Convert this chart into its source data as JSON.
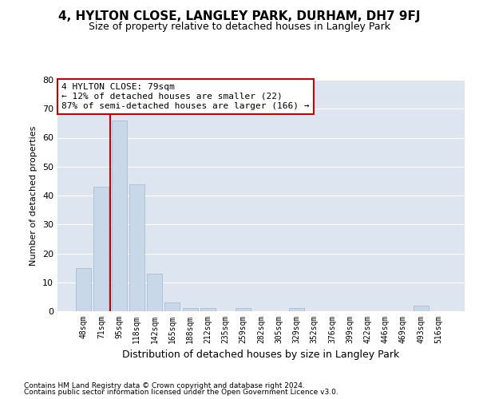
{
  "title": "4, HYLTON CLOSE, LANGLEY PARK, DURHAM, DH7 9FJ",
  "subtitle": "Size of property relative to detached houses in Langley Park",
  "xlabel": "Distribution of detached houses by size in Langley Park",
  "ylabel": "Number of detached properties",
  "footnote1": "Contains HM Land Registry data © Crown copyright and database right 2024.",
  "footnote2": "Contains public sector information licensed under the Open Government Licence v3.0.",
  "property_label": "4 HYLTON CLOSE: 79sqm",
  "annotation_line1": "← 12% of detached houses are smaller (22)",
  "annotation_line2": "87% of semi-detached houses are larger (166) →",
  "bar_color": "#c8d8e8",
  "bar_edge_color": "#a0b8d0",
  "vline_color": "#cc0000",
  "annotation_box_color": "#cc0000",
  "bg_color": "#dde5f0",
  "categories": [
    "48sqm",
    "71sqm",
    "95sqm",
    "118sqm",
    "142sqm",
    "165sqm",
    "188sqm",
    "212sqm",
    "235sqm",
    "259sqm",
    "282sqm",
    "305sqm",
    "329sqm",
    "352sqm",
    "376sqm",
    "399sqm",
    "422sqm",
    "446sqm",
    "469sqm",
    "493sqm",
    "516sqm"
  ],
  "values": [
    15,
    43,
    66,
    44,
    13,
    3,
    1,
    1,
    0,
    1,
    0,
    0,
    1,
    0,
    0,
    0,
    0,
    0,
    0,
    2,
    0
  ],
  "vline_position": 1.5,
  "ylim": [
    0,
    80
  ],
  "yticks": [
    0,
    10,
    20,
    30,
    40,
    50,
    60,
    70,
    80
  ],
  "title_fontsize": 11,
  "subtitle_fontsize": 9,
  "xlabel_fontsize": 9,
  "ylabel_fontsize": 8,
  "tick_fontsize": 8,
  "xtick_fontsize": 7,
  "footnote_fontsize": 6.5,
  "annot_fontsize": 8
}
